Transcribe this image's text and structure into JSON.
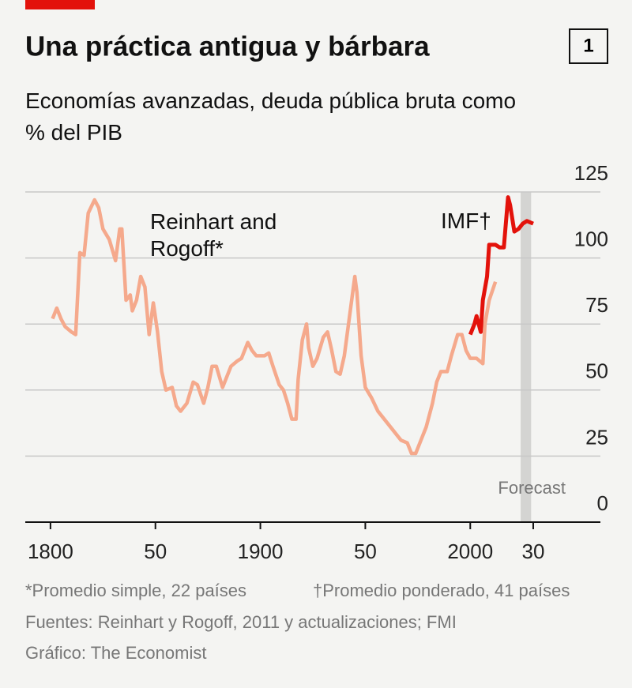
{
  "chart_data": {
    "type": "line",
    "title": "Una práctica antigua y bárbara",
    "badge": "1",
    "subtitle": "Economías avanzadas, deuda pública bruta como % del PIB",
    "xlim": [
      1788,
      2062
    ],
    "ylim": [
      0,
      125
    ],
    "xticks": [
      1800,
      {
        "value": 1850,
        "label": "50"
      },
      1900,
      {
        "value": 1950,
        "label": "50"
      },
      2000,
      {
        "value": 2030,
        "label": "30"
      }
    ],
    "yticks": [
      0,
      25,
      50,
      75,
      100,
      125
    ],
    "grid": true,
    "forecast": {
      "label": "Forecast",
      "range": [
        2024,
        2029
      ]
    },
    "series": [
      {
        "name": "Reinhart and Rogoff*",
        "color": "#f5a98c",
        "x": [
          1801,
          1803,
          1805,
          1807,
          1810,
          1812,
          1814,
          1816,
          1818,
          1821,
          1823,
          1825,
          1828,
          1831,
          1833,
          1834,
          1836,
          1838,
          1839,
          1841,
          1843,
          1845,
          1847,
          1849,
          1851,
          1853,
          1855,
          1858,
          1860,
          1862,
          1865,
          1868,
          1870,
          1873,
          1875,
          1877,
          1879,
          1882,
          1884,
          1886,
          1889,
          1891,
          1894,
          1896,
          1898,
          1902,
          1904,
          1906,
          1909,
          1911,
          1913,
          1915,
          1917,
          1918,
          1920,
          1922,
          1923,
          1925,
          1927,
          1930,
          1932,
          1934,
          1936,
          1938,
          1940,
          1943,
          1945,
          1946,
          1948,
          1950,
          1953,
          1956,
          1959,
          1963,
          1967,
          1970,
          1972,
          1974,
          1976,
          1979,
          1982,
          1984,
          1986,
          1989,
          1991,
          1994,
          1996,
          1998,
          2000,
          2003,
          2006,
          2007,
          2009,
          2012
        ],
        "values": [
          77,
          81,
          77,
          74,
          72,
          71,
          102,
          101,
          117,
          122,
          119,
          111,
          107,
          99,
          111,
          111,
          84,
          86,
          80,
          84,
          93,
          89,
          71,
          83,
          72,
          57,
          50,
          51,
          44,
          42,
          45,
          53,
          52,
          45,
          51,
          59,
          59,
          51,
          55,
          59,
          61,
          62,
          68,
          65,
          63,
          63,
          64,
          59,
          52,
          50,
          45,
          39,
          39,
          54,
          69,
          75,
          66,
          59,
          62,
          70,
          72,
          65,
          57,
          56,
          63,
          81,
          93,
          87,
          63,
          51,
          47,
          42,
          39,
          35,
          31,
          30,
          26,
          26,
          30,
          36,
          45,
          53,
          57,
          57,
          63,
          71,
          71,
          65,
          62,
          62,
          60,
          75,
          84,
          91
        ]
      },
      {
        "name": "IMF†",
        "color": "#e3120b",
        "x": [
          2000,
          2002,
          2003,
          2005,
          2006,
          2008,
          2009,
          2012,
          2014,
          2016,
          2018,
          2019,
          2021,
          2023,
          2025,
          2027,
          2030
        ],
        "values": [
          71,
          75,
          78,
          72,
          84,
          93,
          105,
          105,
          104,
          104,
          123,
          120,
          110,
          111,
          113,
          114,
          113
        ]
      }
    ],
    "footnotes": [
      "*Promedio simple, 22 países",
      "†Promedio ponderado, 41 países"
    ],
    "source": "Fuentes: Reinhart y Rogoff, 2011 y actualizaciones; FMI",
    "credit": "Gráfico: The Economist"
  }
}
